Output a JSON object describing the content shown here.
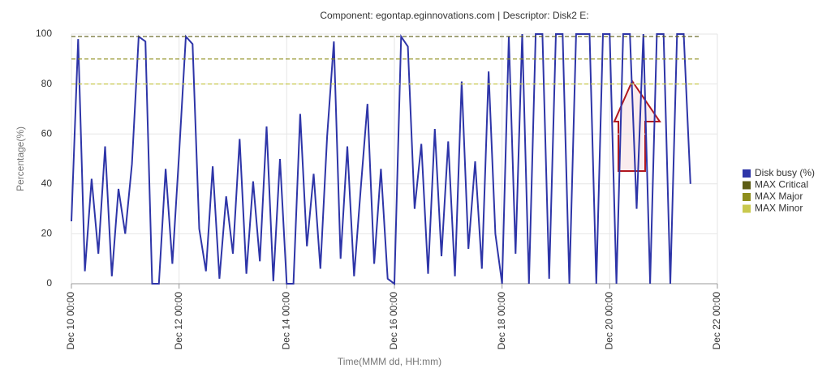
{
  "chart_data": {
    "type": "line",
    "title": "Component: egontap.eginnovations.com | Descriptor: Disk2 E:",
    "x_label": "Time(MMM dd, HH:mm)",
    "y_label": "Percentage(%)",
    "x": [
      "Dec 10 00:00",
      "Dec 10 03:00",
      "Dec 10 06:00",
      "Dec 10 09:00",
      "Dec 10 12:00",
      "Dec 10 15:00",
      "Dec 10 18:00",
      "Dec 10 21:00",
      "Dec 11 00:00",
      "Dec 11 03:00",
      "Dec 11 06:00",
      "Dec 11 09:00",
      "Dec 11 12:00",
      "Dec 11 15:00",
      "Dec 11 18:00",
      "Dec 11 21:00",
      "Dec 12 00:00",
      "Dec 12 03:00",
      "Dec 12 06:00",
      "Dec 12 09:00",
      "Dec 12 12:00",
      "Dec 12 15:00",
      "Dec 12 18:00",
      "Dec 12 21:00",
      "Dec 13 00:00",
      "Dec 13 03:00",
      "Dec 13 06:00",
      "Dec 13 09:00",
      "Dec 13 12:00",
      "Dec 13 15:00",
      "Dec 13 18:00",
      "Dec 13 21:00",
      "Dec 14 00:00",
      "Dec 14 03:00",
      "Dec 14 06:00",
      "Dec 14 09:00",
      "Dec 14 12:00",
      "Dec 14 15:00",
      "Dec 14 18:00",
      "Dec 14 21:00",
      "Dec 15 00:00",
      "Dec 15 03:00",
      "Dec 15 06:00",
      "Dec 15 09:00",
      "Dec 15 12:00",
      "Dec 15 15:00",
      "Dec 15 18:00",
      "Dec 15 21:00",
      "Dec 16 00:00",
      "Dec 16 03:00",
      "Dec 16 06:00",
      "Dec 16 09:00",
      "Dec 16 12:00",
      "Dec 16 15:00",
      "Dec 16 18:00",
      "Dec 16 21:00",
      "Dec 17 00:00",
      "Dec 17 03:00",
      "Dec 17 06:00",
      "Dec 17 09:00",
      "Dec 17 12:00",
      "Dec 17 15:00",
      "Dec 17 18:00",
      "Dec 17 21:00",
      "Dec 18 00:00",
      "Dec 18 03:00",
      "Dec 18 06:00",
      "Dec 18 09:00",
      "Dec 18 12:00",
      "Dec 18 15:00",
      "Dec 18 18:00",
      "Dec 18 21:00",
      "Dec 19 00:00",
      "Dec 19 03:00",
      "Dec 19 06:00",
      "Dec 19 09:00",
      "Dec 19 12:00",
      "Dec 19 15:00",
      "Dec 19 18:00",
      "Dec 19 21:00",
      "Dec 20 00:00",
      "Dec 20 03:00",
      "Dec 20 06:00",
      "Dec 20 09:00",
      "Dec 20 12:00",
      "Dec 20 15:00",
      "Dec 20 18:00",
      "Dec 20 21:00",
      "Dec 21 00:00",
      "Dec 21 03:00",
      "Dec 21 06:00",
      "Dec 21 09:00",
      "Dec 21 12:00"
    ],
    "series": [
      {
        "name": "Disk busy (%)",
        "color": "#2e35a8",
        "values": [
          25,
          98,
          5,
          42,
          12,
          55,
          3,
          38,
          20,
          48,
          99,
          97,
          0,
          0,
          46,
          8,
          52,
          99,
          96,
          22,
          5,
          47,
          2,
          35,
          12,
          58,
          4,
          41,
          9,
          63,
          1,
          50,
          0,
          0,
          68,
          15,
          44,
          6,
          59,
          97,
          10,
          55,
          3,
          38,
          72,
          8,
          46,
          2,
          0,
          99,
          95,
          30,
          56,
          4,
          62,
          11,
          57,
          3,
          81,
          14,
          49,
          6,
          85,
          20,
          0,
          99,
          12,
          100,
          0,
          100,
          100,
          2,
          100,
          100,
          0,
          100,
          100,
          100,
          0,
          100,
          100,
          0,
          100,
          100,
          30,
          100,
          0,
          100,
          100,
          0,
          100,
          100,
          40
        ]
      }
    ],
    "thresholds": [
      {
        "name": "MAX Critical",
        "color": "#5c5c14",
        "value": 99
      },
      {
        "name": "MAX Major",
        "color": "#8e8e1c",
        "value": 90
      },
      {
        "name": "MAX Minor",
        "color": "#c9c94e",
        "value": 80
      }
    ],
    "xlim": [
      "Dec 10 00:00",
      "Dec 22 00:00"
    ],
    "xticks": [
      "Dec 10 00:00",
      "Dec 12 00:00",
      "Dec 14 00:00",
      "Dec 16 00:00",
      "Dec 18 00:00",
      "Dec 20 00:00",
      "Dec 22 00:00"
    ],
    "ylim": [
      0,
      100
    ],
    "yticks": [
      0,
      20,
      40,
      60,
      80,
      100
    ],
    "grid": true
  }
}
